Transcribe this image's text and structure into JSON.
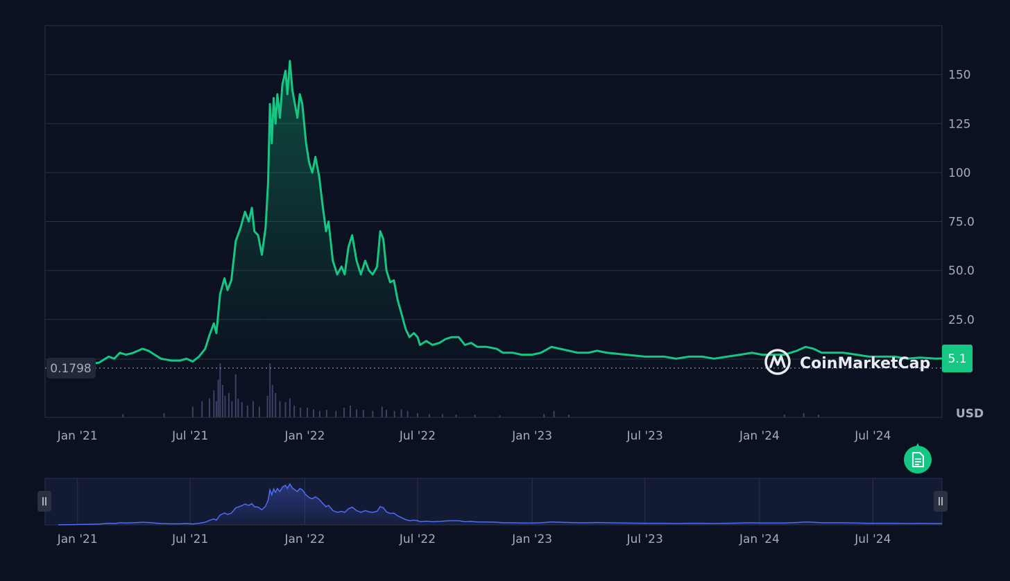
{
  "chart_data": {
    "type": "line",
    "currency_label": "USD",
    "brand": {
      "name": "CoinMarketCap",
      "icon": "coinmarketcap-logo-icon"
    },
    "y_ticks": [
      "25.0",
      "50.0",
      "75.0",
      "100",
      "125",
      "150"
    ],
    "y_tick_values": [
      25,
      50,
      75,
      100,
      125,
      150
    ],
    "ylim": [
      -25,
      175
    ],
    "x_tick_labels": [
      "Jan '21",
      "Jul '21",
      "Jan '22",
      "Jul '22",
      "Jan '23",
      "Jul '23",
      "Jan '24",
      "Jul '24"
    ],
    "x_tick_dates": [
      "2021-01-01",
      "2021-07-01",
      "2022-01-01",
      "2022-07-01",
      "2023-01-01",
      "2023-07-01",
      "2024-01-01",
      "2024-07-01"
    ],
    "xlim": [
      "2020-11-10",
      "2024-10-20"
    ],
    "start_price_label": "0.1798",
    "start_price": 0.1798,
    "current_price_label": "5.1",
    "current_price": 5.1,
    "series": [
      {
        "color": "#16c784",
        "points": [
          [
            "2020-12-01",
            0.2
          ],
          [
            "2020-12-20",
            0.5
          ],
          [
            "2021-01-05",
            1.5
          ],
          [
            "2021-01-20",
            2
          ],
          [
            "2021-02-05",
            3
          ],
          [
            "2021-02-20",
            6
          ],
          [
            "2021-03-01",
            5
          ],
          [
            "2021-03-10",
            8
          ],
          [
            "2021-03-20",
            7
          ],
          [
            "2021-04-01",
            8
          ],
          [
            "2021-04-15",
            10
          ],
          [
            "2021-04-25",
            9
          ],
          [
            "2021-05-05",
            7
          ],
          [
            "2021-05-15",
            5
          ],
          [
            "2021-06-01",
            4
          ],
          [
            "2021-06-15",
            4
          ],
          [
            "2021-06-25",
            5
          ],
          [
            "2021-07-05",
            3.5
          ],
          [
            "2021-07-15",
            6
          ],
          [
            "2021-07-25",
            10
          ],
          [
            "2021-08-01",
            17
          ],
          [
            "2021-08-08",
            23
          ],
          [
            "2021-08-12",
            18
          ],
          [
            "2021-08-18",
            38
          ],
          [
            "2021-08-25",
            46
          ],
          [
            "2021-08-30",
            40
          ],
          [
            "2021-09-05",
            45
          ],
          [
            "2021-09-12",
            65
          ],
          [
            "2021-09-20",
            72
          ],
          [
            "2021-09-27",
            80
          ],
          [
            "2021-10-03",
            75
          ],
          [
            "2021-10-08",
            82
          ],
          [
            "2021-10-12",
            70
          ],
          [
            "2021-10-18",
            68
          ],
          [
            "2021-10-24",
            58
          ],
          [
            "2021-10-30",
            72
          ],
          [
            "2021-11-03",
            95
          ],
          [
            "2021-11-06",
            135
          ],
          [
            "2021-11-09",
            115
          ],
          [
            "2021-11-12",
            138
          ],
          [
            "2021-11-15",
            125
          ],
          [
            "2021-11-18",
            140
          ],
          [
            "2021-11-22",
            128
          ],
          [
            "2021-11-26",
            145
          ],
          [
            "2021-12-01",
            152
          ],
          [
            "2021-12-04",
            140
          ],
          [
            "2021-12-08",
            157
          ],
          [
            "2021-12-12",
            142
          ],
          [
            "2021-12-16",
            135
          ],
          [
            "2021-12-20",
            128
          ],
          [
            "2021-12-24",
            140
          ],
          [
            "2021-12-28",
            135
          ],
          [
            "2022-01-03",
            115
          ],
          [
            "2022-01-08",
            105
          ],
          [
            "2022-01-13",
            100
          ],
          [
            "2022-01-18",
            108
          ],
          [
            "2022-01-24",
            98
          ],
          [
            "2022-01-30",
            82
          ],
          [
            "2022-02-04",
            70
          ],
          [
            "2022-02-08",
            75
          ],
          [
            "2022-02-15",
            55
          ],
          [
            "2022-02-22",
            48
          ],
          [
            "2022-03-01",
            52
          ],
          [
            "2022-03-06",
            48
          ],
          [
            "2022-03-12",
            62
          ],
          [
            "2022-03-18",
            68
          ],
          [
            "2022-03-25",
            55
          ],
          [
            "2022-04-01",
            48
          ],
          [
            "2022-04-08",
            55
          ],
          [
            "2022-04-14",
            50
          ],
          [
            "2022-04-20",
            48
          ],
          [
            "2022-04-27",
            52
          ],
          [
            "2022-05-02",
            70
          ],
          [
            "2022-05-07",
            66
          ],
          [
            "2022-05-12",
            50
          ],
          [
            "2022-05-18",
            44
          ],
          [
            "2022-05-24",
            45
          ],
          [
            "2022-05-30",
            35
          ],
          [
            "2022-06-06",
            27
          ],
          [
            "2022-06-12",
            20
          ],
          [
            "2022-06-18",
            16
          ],
          [
            "2022-06-25",
            18
          ],
          [
            "2022-07-01",
            16
          ],
          [
            "2022-07-05",
            12
          ],
          [
            "2022-07-15",
            14
          ],
          [
            "2022-07-25",
            12
          ],
          [
            "2022-08-05",
            13
          ],
          [
            "2022-08-15",
            15
          ],
          [
            "2022-08-25",
            16
          ],
          [
            "2022-09-05",
            16
          ],
          [
            "2022-09-15",
            12
          ],
          [
            "2022-09-25",
            13
          ],
          [
            "2022-10-05",
            11
          ],
          [
            "2022-10-20",
            11
          ],
          [
            "2022-11-05",
            10
          ],
          [
            "2022-11-15",
            8
          ],
          [
            "2022-12-01",
            8
          ],
          [
            "2022-12-15",
            7
          ],
          [
            "2023-01-01",
            7
          ],
          [
            "2023-01-15",
            8
          ],
          [
            "2023-02-01",
            11
          ],
          [
            "2023-02-15",
            10
          ],
          [
            "2023-03-01",
            9
          ],
          [
            "2023-03-15",
            8
          ],
          [
            "2023-04-01",
            8
          ],
          [
            "2023-04-15",
            9
          ],
          [
            "2023-05-01",
            8
          ],
          [
            "2023-06-01",
            7
          ],
          [
            "2023-07-01",
            6
          ],
          [
            "2023-08-01",
            6
          ],
          [
            "2023-08-20",
            5
          ],
          [
            "2023-09-10",
            6
          ],
          [
            "2023-10-01",
            6
          ],
          [
            "2023-10-20",
            5
          ],
          [
            "2023-11-10",
            6
          ],
          [
            "2023-12-01",
            7
          ],
          [
            "2023-12-20",
            8
          ],
          [
            "2024-01-05",
            7
          ],
          [
            "2024-01-20",
            7
          ],
          [
            "2024-02-10",
            7
          ],
          [
            "2024-03-01",
            9
          ],
          [
            "2024-03-15",
            11
          ],
          [
            "2024-03-28",
            10
          ],
          [
            "2024-04-10",
            8
          ],
          [
            "2024-04-25",
            8
          ],
          [
            "2024-05-15",
            8
          ],
          [
            "2024-06-05",
            7
          ],
          [
            "2024-06-25",
            6
          ],
          [
            "2024-07-15",
            6
          ],
          [
            "2024-08-05",
            6
          ],
          [
            "2024-08-25",
            5
          ],
          [
            "2024-09-15",
            5.5
          ],
          [
            "2024-10-10",
            5
          ],
          [
            "2024-10-20",
            5.1
          ]
        ]
      }
    ],
    "volume_bars": [
      [
        "2021-03-15",
        6
      ],
      [
        "2021-05-20",
        8
      ],
      [
        "2021-07-05",
        20
      ],
      [
        "2021-07-20",
        30
      ],
      [
        "2021-08-01",
        35
      ],
      [
        "2021-08-08",
        50
      ],
      [
        "2021-08-12",
        30
      ],
      [
        "2021-08-15",
        70
      ],
      [
        "2021-08-18",
        100
      ],
      [
        "2021-08-22",
        60
      ],
      [
        "2021-08-26",
        40
      ],
      [
        "2021-09-01",
        45
      ],
      [
        "2021-09-06",
        30
      ],
      [
        "2021-09-12",
        80
      ],
      [
        "2021-09-16",
        35
      ],
      [
        "2021-09-22",
        28
      ],
      [
        "2021-10-01",
        22
      ],
      [
        "2021-10-10",
        30
      ],
      [
        "2021-10-20",
        20
      ],
      [
        "2021-11-02",
        40
      ],
      [
        "2021-11-06",
        100
      ],
      [
        "2021-11-10",
        60
      ],
      [
        "2021-11-15",
        45
      ],
      [
        "2021-11-22",
        30
      ],
      [
        "2021-12-01",
        28
      ],
      [
        "2021-12-08",
        35
      ],
      [
        "2021-12-15",
        22
      ],
      [
        "2021-12-25",
        18
      ],
      [
        "2022-01-05",
        18
      ],
      [
        "2022-01-15",
        15
      ],
      [
        "2022-01-25",
        12
      ],
      [
        "2022-02-05",
        14
      ],
      [
        "2022-02-20",
        12
      ],
      [
        "2022-03-05",
        18
      ],
      [
        "2022-03-15",
        22
      ],
      [
        "2022-03-25",
        15
      ],
      [
        "2022-04-05",
        14
      ],
      [
        "2022-04-20",
        12
      ],
      [
        "2022-05-05",
        20
      ],
      [
        "2022-05-12",
        14
      ],
      [
        "2022-05-25",
        12
      ],
      [
        "2022-06-05",
        15
      ],
      [
        "2022-06-15",
        12
      ],
      [
        "2022-07-01",
        8
      ],
      [
        "2022-07-20",
        6
      ],
      [
        "2022-08-10",
        6
      ],
      [
        "2022-09-01",
        5
      ],
      [
        "2022-10-01",
        5
      ],
      [
        "2022-11-10",
        4
      ],
      [
        "2023-01-20",
        6
      ],
      [
        "2023-02-05",
        12
      ],
      [
        "2023-03-01",
        5
      ],
      [
        "2024-02-10",
        5
      ],
      [
        "2024-03-12",
        8
      ],
      [
        "2024-04-05",
        5
      ]
    ],
    "navigator": {
      "x_tick_labels": [
        "Jan '21",
        "Jul '21",
        "Jan '22",
        "Jul '22",
        "Jan '23",
        "Jul '23",
        "Jan '24",
        "Jul '24"
      ]
    }
  },
  "controls": {
    "report_icon": "document-icon",
    "handle_icon": "pause-bars-icon"
  }
}
